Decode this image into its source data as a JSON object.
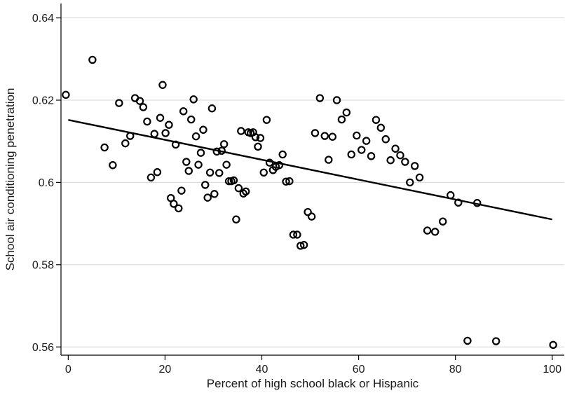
{
  "chart_data": {
    "type": "scatter",
    "title": "",
    "xlabel": "Percent of high school black or Hispanic",
    "ylabel": "School air conditioning penetration",
    "xlim": [
      -1.5,
      102.5
    ],
    "ylim": [
      0.558,
      0.6435
    ],
    "x_ticks": [
      0,
      20,
      40,
      60,
      80,
      100
    ],
    "x_tick_labels": [
      "0",
      "20",
      "40",
      "60",
      "80",
      "100"
    ],
    "y_ticks": [
      0.56,
      0.58,
      0.6,
      0.62,
      0.64
    ],
    "y_tick_labels": [
      "0.56",
      "0.58",
      "0.6",
      "0.62",
      "0.64"
    ],
    "grid": true,
    "legend": "none",
    "fit_line": {
      "x": [
        0,
        100
      ],
      "y": [
        0.6152,
        0.591
      ]
    },
    "points": [
      [
        -0.5,
        0.6213
      ],
      [
        5.0,
        0.6298
      ],
      [
        7.5,
        0.6085
      ],
      [
        9.2,
        0.6042
      ],
      [
        10.5,
        0.6193
      ],
      [
        11.8,
        0.6095
      ],
      [
        12.8,
        0.6113
      ],
      [
        13.8,
        0.6205
      ],
      [
        14.8,
        0.6198
      ],
      [
        15.5,
        0.6183
      ],
      [
        16.3,
        0.6148
      ],
      [
        17.1,
        0.6012
      ],
      [
        17.8,
        0.6118
      ],
      [
        18.4,
        0.6025
      ],
      [
        19.0,
        0.6157
      ],
      [
        19.5,
        0.6237
      ],
      [
        20.1,
        0.612
      ],
      [
        20.8,
        0.614
      ],
      [
        21.2,
        0.5962
      ],
      [
        21.8,
        0.5948
      ],
      [
        22.2,
        0.6092
      ],
      [
        22.8,
        0.5937
      ],
      [
        23.4,
        0.598
      ],
      [
        23.8,
        0.6173
      ],
      [
        24.4,
        0.605
      ],
      [
        24.9,
        0.6028
      ],
      [
        25.4,
        0.6153
      ],
      [
        25.9,
        0.6202
      ],
      [
        26.4,
        0.6112
      ],
      [
        26.9,
        0.6043
      ],
      [
        27.4,
        0.6072
      ],
      [
        27.9,
        0.6128
      ],
      [
        28.3,
        0.5994
      ],
      [
        28.8,
        0.5963
      ],
      [
        29.3,
        0.6024
      ],
      [
        29.7,
        0.618
      ],
      [
        30.2,
        0.5972
      ],
      [
        30.7,
        0.6075
      ],
      [
        31.2,
        0.6023
      ],
      [
        31.7,
        0.6077
      ],
      [
        32.2,
        0.6093
      ],
      [
        32.7,
        0.6043
      ],
      [
        33.2,
        0.6003
      ],
      [
        33.7,
        0.6003
      ],
      [
        34.2,
        0.6005
      ],
      [
        34.7,
        0.591
      ],
      [
        35.2,
        0.5986
      ],
      [
        35.7,
        0.6125
      ],
      [
        36.2,
        0.5973
      ],
      [
        36.7,
        0.5978
      ],
      [
        37.2,
        0.6122
      ],
      [
        37.7,
        0.612
      ],
      [
        38.2,
        0.6122
      ],
      [
        38.7,
        0.611
      ],
      [
        39.2,
        0.6087
      ],
      [
        39.7,
        0.6108
      ],
      [
        40.4,
        0.6024
      ],
      [
        41.0,
        0.6152
      ],
      [
        41.6,
        0.6048
      ],
      [
        42.3,
        0.603
      ],
      [
        42.9,
        0.6038
      ],
      [
        43.6,
        0.6042
      ],
      [
        44.3,
        0.6068
      ],
      [
        45.0,
        0.6002
      ],
      [
        45.7,
        0.6003
      ],
      [
        46.5,
        0.5873
      ],
      [
        47.3,
        0.5873
      ],
      [
        48.0,
        0.5846
      ],
      [
        48.7,
        0.5848
      ],
      [
        49.5,
        0.5928
      ],
      [
        50.3,
        0.5917
      ],
      [
        51.0,
        0.612
      ],
      [
        52.0,
        0.6205
      ],
      [
        53.0,
        0.6113
      ],
      [
        53.8,
        0.6055
      ],
      [
        54.6,
        0.6111
      ],
      [
        55.5,
        0.62
      ],
      [
        56.5,
        0.6153
      ],
      [
        57.5,
        0.617
      ],
      [
        58.5,
        0.6068
      ],
      [
        59.6,
        0.6114
      ],
      [
        60.6,
        0.6079
      ],
      [
        61.6,
        0.6101
      ],
      [
        62.6,
        0.6064
      ],
      [
        63.6,
        0.6152
      ],
      [
        64.6,
        0.6133
      ],
      [
        65.6,
        0.6105
      ],
      [
        66.6,
        0.6054
      ],
      [
        67.6,
        0.6082
      ],
      [
        68.6,
        0.6066
      ],
      [
        69.6,
        0.605
      ],
      [
        70.6,
        0.6
      ],
      [
        71.6,
        0.604
      ],
      [
        72.6,
        0.6012
      ],
      [
        74.2,
        0.5883
      ],
      [
        75.8,
        0.588
      ],
      [
        77.4,
        0.5905
      ],
      [
        79.0,
        0.5969
      ],
      [
        80.6,
        0.5951
      ],
      [
        82.5,
        0.5615
      ],
      [
        84.5,
        0.595
      ],
      [
        88.4,
        0.5614
      ],
      [
        100.2,
        0.5605
      ]
    ]
  }
}
